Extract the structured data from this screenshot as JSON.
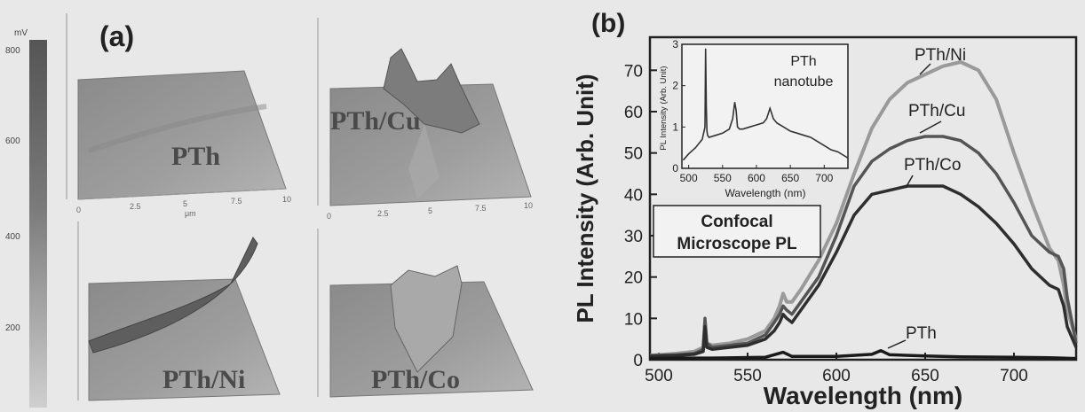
{
  "panel_a": {
    "label": "(a)",
    "colorbar": {
      "unit": "mV",
      "ticks": [
        "800",
        "600",
        "400",
        "200"
      ]
    },
    "surface_labels": [
      "PTh",
      "PTh/Cu",
      "PTh/Ni",
      "PTh/Co"
    ],
    "axis_ticks": [
      "0",
      "2.5",
      "5",
      "7.5",
      "10"
    ],
    "axis_unit": "μm"
  },
  "chart_data": {
    "type": "line",
    "panel_label": "(b)",
    "xlabel": "Wavelength (nm)",
    "ylabel": "PL Intensity (Arb. Unit)",
    "xlim": [
      495,
      735
    ],
    "ylim": [
      0,
      78
    ],
    "xticks": [
      "500",
      "550",
      "600",
      "650",
      "700"
    ],
    "yticks": [
      "0",
      "10",
      "20",
      "30",
      "40",
      "50",
      "60",
      "70"
    ],
    "box_label": [
      "Confocal",
      "Microscope PL"
    ],
    "series": [
      {
        "name": "PTh/Ni",
        "color": "#9a9a9a",
        "x": [
          495,
          510,
          520,
          525,
          526,
          527,
          530,
          540,
          550,
          560,
          565,
          568,
          570,
          572,
          575,
          580,
          590,
          600,
          610,
          620,
          630,
          640,
          650,
          660,
          670,
          680,
          690,
          700,
          710,
          720,
          725,
          728,
          730,
          735
        ],
        "y": [
          1,
          1.5,
          2,
          3,
          9,
          4,
          3.5,
          4,
          5,
          7,
          10,
          13,
          16,
          14,
          14,
          17,
          24,
          33,
          45,
          56,
          63,
          67,
          69,
          71,
          72,
          70,
          63,
          50,
          38,
          27,
          24,
          18,
          12,
          5
        ]
      },
      {
        "name": "PTh/Cu",
        "color": "#555555",
        "x": [
          495,
          510,
          520,
          525,
          526,
          527,
          530,
          540,
          550,
          560,
          565,
          568,
          570,
          572,
          575,
          580,
          590,
          600,
          610,
          620,
          630,
          640,
          650,
          660,
          670,
          680,
          690,
          700,
          710,
          720,
          725,
          728,
          730,
          735
        ],
        "y": [
          1,
          1.2,
          1.5,
          2.5,
          10,
          4,
          3,
          3.5,
          4,
          6,
          9,
          11,
          13,
          12,
          11,
          14,
          20,
          30,
          42,
          48,
          51,
          53,
          54,
          54,
          53,
          50,
          45,
          38,
          30,
          26,
          25,
          22,
          15,
          4
        ]
      },
      {
        "name": "PTh/Co",
        "color": "#2e2e2e",
        "x": [
          495,
          510,
          520,
          525,
          526,
          527,
          530,
          540,
          550,
          560,
          565,
          568,
          570,
          572,
          575,
          580,
          590,
          600,
          610,
          620,
          630,
          640,
          650,
          660,
          670,
          680,
          690,
          700,
          710,
          720,
          725,
          728,
          730,
          735
        ],
        "y": [
          0.8,
          1,
          1.3,
          2,
          8,
          3,
          2.5,
          3,
          3.5,
          5,
          7,
          9,
          11,
          10,
          9,
          12,
          18,
          26,
          35,
          40,
          41,
          42,
          42,
          42,
          40,
          37,
          33,
          28,
          22,
          18,
          17,
          13,
          8,
          3
        ]
      },
      {
        "name": "PTh",
        "color": "#1a1a1a",
        "x": [
          495,
          520,
          530,
          560,
          570,
          575,
          600,
          620,
          625,
          630,
          650,
          670,
          700,
          720,
          735
        ],
        "y": [
          0.3,
          0.4,
          0.4,
          0.6,
          1.8,
          0.8,
          0.8,
          1.3,
          2.2,
          1.2,
          0.9,
          0.7,
          0.6,
          0.5,
          0.3
        ]
      }
    ],
    "inset": {
      "type": "line",
      "xlabel": "Wavelength (nm)",
      "ylabel": "PL Intensity (Arb. Unit)",
      "title": [
        "PTh",
        "nanotube"
      ],
      "xlim": [
        490,
        735
      ],
      "ylim": [
        0,
        3
      ],
      "xticks": [
        "500",
        "550",
        "600",
        "650",
        "700"
      ],
      "yticks": [
        "0",
        "1",
        "2",
        "3"
      ],
      "x": [
        492,
        500,
        510,
        520,
        524,
        525,
        526,
        527,
        528,
        530,
        540,
        550,
        560,
        565,
        568,
        570,
        572,
        575,
        580,
        590,
        600,
        610,
        615,
        620,
        622,
        625,
        630,
        640,
        650,
        660,
        670,
        680,
        690,
        700,
        710,
        720,
        730,
        735
      ],
      "y": [
        0.2,
        0.35,
        0.5,
        0.7,
        1.0,
        2.9,
        1.5,
        0.9,
        0.8,
        0.75,
        0.8,
        0.85,
        0.95,
        1.2,
        1.6,
        1.4,
        1.0,
        0.95,
        0.95,
        1.0,
        1.05,
        1.1,
        1.2,
        1.45,
        1.35,
        1.2,
        1.1,
        1.0,
        0.9,
        0.85,
        0.8,
        0.75,
        0.65,
        0.55,
        0.45,
        0.4,
        0.3,
        0.25
      ]
    }
  }
}
